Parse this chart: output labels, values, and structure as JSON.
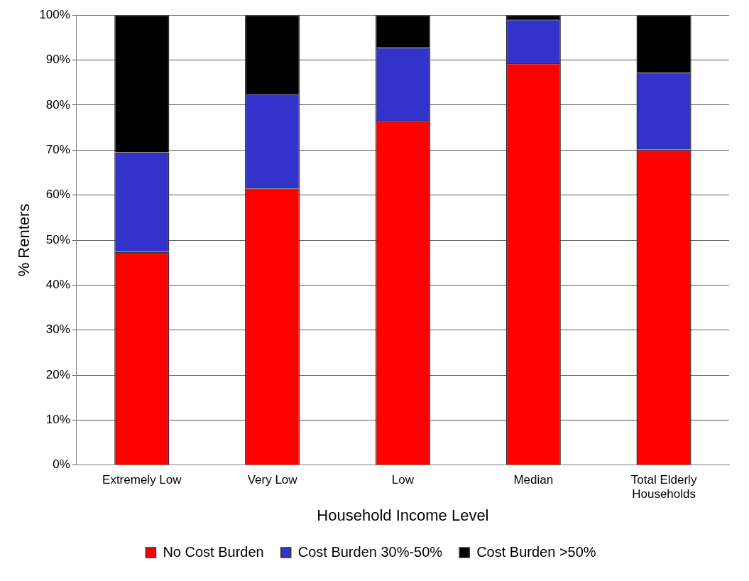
{
  "chart_data": {
    "type": "bar",
    "stacked": true,
    "categories": [
      "Extremely Low",
      "Very Low",
      "Low",
      "Median",
      "Total Elderly Households"
    ],
    "series": [
      {
        "name": "No Cost Burden",
        "color": "#ff0000",
        "values": [
          47.4,
          61.5,
          76.5,
          89.3,
          70.1
        ]
      },
      {
        "name": "Cost Burden 30%-50%",
        "color": "#3333cc",
        "values": [
          22.1,
          21.0,
          16.3,
          9.8,
          17.1
        ]
      },
      {
        "name": "Cost Burden >50%",
        "color": "#000000",
        "values": [
          30.5,
          17.5,
          7.2,
          0.9,
          12.8
        ]
      }
    ],
    "xlabel": "Household Income Level",
    "ylabel": "% Renters",
    "ylim": [
      0,
      100
    ],
    "yticks": [
      {
        "value": 0,
        "label": "0%"
      },
      {
        "value": 10,
        "label": "10%"
      },
      {
        "value": 20,
        "label": "20%"
      },
      {
        "value": 30,
        "label": "30%"
      },
      {
        "value": 40,
        "label": "40%"
      },
      {
        "value": 50,
        "label": "50%"
      },
      {
        "value": 60,
        "label": "60%"
      },
      {
        "value": 70,
        "label": "70%"
      },
      {
        "value": 80,
        "label": "80%"
      },
      {
        "value": 90,
        "label": "90%"
      },
      {
        "value": 100,
        "label": "100%"
      }
    ],
    "grid": "y",
    "legend": "bottom"
  }
}
